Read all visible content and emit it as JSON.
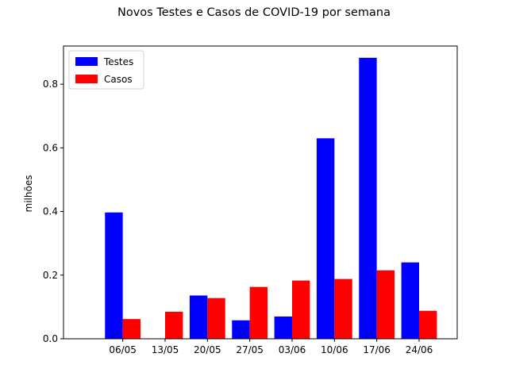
{
  "chart_data": {
    "type": "bar",
    "title": "Novos Testes e Casos de COVID-19 por semana",
    "xlabel": "",
    "ylabel": "milhões",
    "categories": [
      "06/05",
      "13/05",
      "20/05",
      "27/05",
      "03/06",
      "10/06",
      "17/06",
      "24/06"
    ],
    "series": [
      {
        "name": "Testes",
        "color": "#0000ff",
        "values": [
          0.397,
          0.0,
          0.136,
          0.058,
          0.07,
          0.63,
          0.883,
          0.24
        ]
      },
      {
        "name": "Casos",
        "color": "#ff0000",
        "values": [
          0.062,
          0.085,
          0.128,
          0.163,
          0.183,
          0.188,
          0.215,
          0.088
        ]
      }
    ],
    "ylim": [
      0,
      0.92
    ],
    "yticks": [
      "0.0",
      "0.2",
      "0.4",
      "0.6",
      "0.8"
    ],
    "legend_position": "top-left",
    "grid": false
  }
}
